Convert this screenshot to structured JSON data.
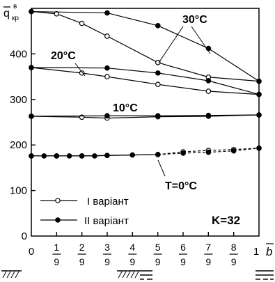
{
  "chart_data": {
    "type": "line",
    "ylabel": {
      "main": "q",
      "sup": "в",
      "sub": "кр"
    },
    "xlabel": "b",
    "xlim": [
      0,
      1
    ],
    "ylim": [
      0,
      500
    ],
    "yticks": [
      "0",
      "100",
      "200",
      "300",
      "400"
    ],
    "xticks": [
      {
        "num": "0",
        "den": ""
      },
      {
        "num": "1",
        "den": "9"
      },
      {
        "num": "2",
        "den": "9"
      },
      {
        "num": "3",
        "den": "9"
      },
      {
        "num": "4",
        "den": "9"
      },
      {
        "num": "5",
        "den": "9"
      },
      {
        "num": "6",
        "den": "9"
      },
      {
        "num": "7",
        "den": "9"
      },
      {
        "num": "8",
        "den": "9"
      },
      {
        "num": "1",
        "den": ""
      }
    ],
    "series": [
      {
        "name": "30°C, I варіант",
        "marker": "open",
        "dashed_from": null,
        "x": [
          0,
          0.111,
          0.222,
          0.333,
          0.556,
          0.778,
          1
        ],
        "y": [
          493,
          488,
          467,
          439,
          381,
          349,
          340
        ]
      },
      {
        "name": "30°C, II варіант",
        "marker": "filled",
        "dashed_from": null,
        "x": [
          0,
          0.333,
          0.556,
          0.778,
          1
        ],
        "y": [
          493,
          490,
          462,
          412,
          340
        ]
      },
      {
        "name": "20°C, I варіант",
        "marker": "open",
        "dashed_from": null,
        "x": [
          0,
          0.222,
          0.333,
          0.556,
          0.778,
          1
        ],
        "y": [
          370,
          358,
          350,
          333,
          318,
          311
        ]
      },
      {
        "name": "20°C, II варіант",
        "marker": "filled",
        "dashed_from": null,
        "x": [
          0,
          0.333,
          0.556,
          0.778,
          1
        ],
        "y": [
          370,
          369,
          358,
          341,
          311
        ]
      },
      {
        "name": "10°C, I варіант",
        "marker": "open",
        "dashed_from": null,
        "x": [
          0,
          0.222,
          0.333,
          0.556,
          0.778,
          1
        ],
        "y": [
          263,
          261,
          259,
          262,
          263,
          266
        ]
      },
      {
        "name": "10°C, II варіант",
        "marker": "filled",
        "dashed_from": null,
        "x": [
          0,
          0.333,
          0.556,
          0.778,
          1
        ],
        "y": [
          263,
          264,
          264,
          265,
          266
        ]
      },
      {
        "name": "0°C, I варіант",
        "marker": "open",
        "dashed_from": 0.556,
        "x": [
          0,
          0.111,
          0.222,
          0.333,
          0.556,
          0.667,
          0.778,
          0.889,
          1
        ],
        "y": [
          176,
          176,
          176,
          177,
          179,
          185,
          188,
          190,
          193
        ]
      },
      {
        "name": "0°C, II варіант",
        "marker": "filled",
        "dashed_from": 0.556,
        "x": [
          0,
          0.056,
          0.111,
          0.167,
          0.222,
          0.278,
          0.333,
          0.444,
          0.556,
          0.667,
          0.778,
          0.889,
          1
        ],
        "y": [
          176,
          176,
          176,
          176,
          176,
          176,
          177,
          178,
          179,
          182,
          184,
          187,
          193
        ]
      }
    ],
    "annotations": [
      {
        "text": "30°C"
      },
      {
        "text": "20°C"
      },
      {
        "text": "10°C"
      },
      {
        "text": "T=0°C"
      }
    ],
    "legend": [
      {
        "label": "I варіант",
        "marker": "open"
      },
      {
        "label": "II варіант",
        "marker": "filled"
      }
    ],
    "corner_label": "K=32",
    "grid": false
  }
}
